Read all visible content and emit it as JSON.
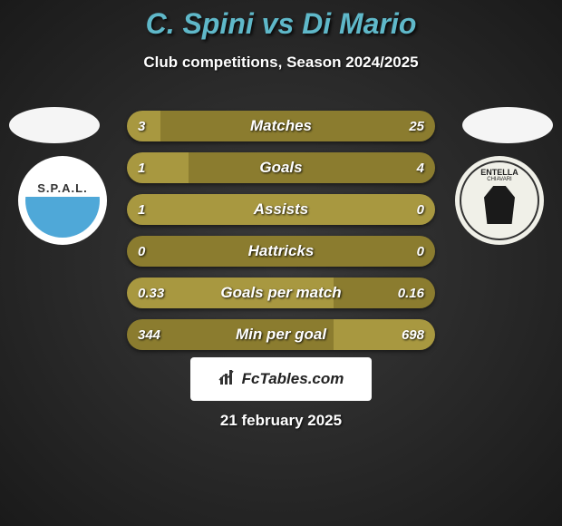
{
  "header": {
    "title": "C. Spini vs Di Mario",
    "subtitle": "Club competitions, Season 2024/2025",
    "title_color": "#5fb8c9"
  },
  "player_left": {
    "club_name": "S.P.A.L."
  },
  "player_right": {
    "club_name": "ENTELLA",
    "club_sub": "CHIAVARI"
  },
  "stats": [
    {
      "label": "Matches",
      "left_value": "3",
      "right_value": "25",
      "left_pct": 11,
      "right_pct": 89,
      "left_color": "#a89840",
      "right_color": "#8b7c2f"
    },
    {
      "label": "Goals",
      "left_value": "1",
      "right_value": "4",
      "left_pct": 20,
      "right_pct": 80,
      "left_color": "#a89840",
      "right_color": "#8b7c2f"
    },
    {
      "label": "Assists",
      "left_value": "1",
      "right_value": "0",
      "left_pct": 100,
      "right_pct": 0,
      "left_color": "#a89840",
      "right_color": "#8b7c2f"
    },
    {
      "label": "Hattricks",
      "left_value": "0",
      "right_value": "0",
      "left_pct": 50,
      "right_pct": 50,
      "left_color": "#8b7c2f",
      "right_color": "#8b7c2f"
    },
    {
      "label": "Goals per match",
      "left_value": "0.33",
      "right_value": "0.16",
      "left_pct": 67,
      "right_pct": 33,
      "left_color": "#a89840",
      "right_color": "#8b7c2f"
    },
    {
      "label": "Min per goal",
      "left_value": "344",
      "right_value": "698",
      "left_pct": 67,
      "right_pct": 33,
      "left_color": "#8b7c2f",
      "right_color": "#a89840"
    }
  ],
  "footer": {
    "brand": "FcTables.com",
    "date": "21 february 2025"
  }
}
